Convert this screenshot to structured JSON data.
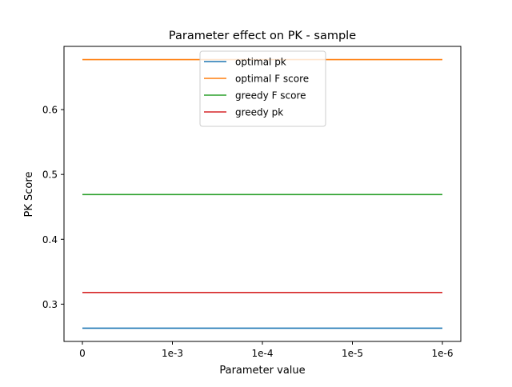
{
  "chart_data": {
    "type": "line",
    "title": "Parameter effect on PK - sample",
    "xlabel": "Parameter value",
    "ylabel": "PK Score",
    "categories": [
      "0",
      "1e-3",
      "1e-4",
      "1e-5",
      "1e-6"
    ],
    "yticks": [
      "0.3",
      "0.4",
      "0.5",
      "0.6"
    ],
    "ylim": [
      0.2425,
      0.6975
    ],
    "grid": false,
    "legend_position": "upper center",
    "series": [
      {
        "name": "optimal pk",
        "color": "#1f77b4",
        "values": [
          0.263,
          0.263,
          0.263,
          0.263,
          0.263
        ]
      },
      {
        "name": "optimal F score",
        "color": "#ff7f0e",
        "values": [
          0.677,
          0.677,
          0.677,
          0.677,
          0.677
        ]
      },
      {
        "name": "greedy F score",
        "color": "#2ca02c",
        "values": [
          0.469,
          0.469,
          0.469,
          0.469,
          0.469
        ]
      },
      {
        "name": "greedy pk",
        "color": "#d62728",
        "values": [
          0.318,
          0.318,
          0.318,
          0.318,
          0.318
        ]
      }
    ]
  }
}
